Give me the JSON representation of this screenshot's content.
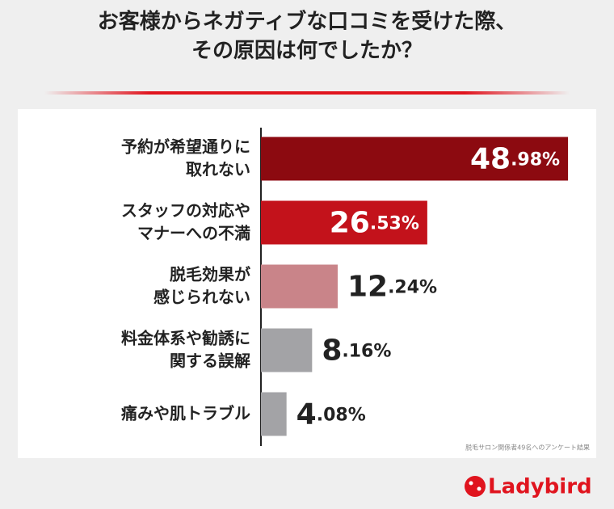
{
  "chart_data": {
    "type": "bar",
    "orientation": "horizontal",
    "title": "お客様からネガティブな口コミを受けた際、\nその原因は何でしたか？",
    "categories": [
      "予約が希望通りに\n取れない",
      "スタッフの対応や\nマナーへの不満",
      "脱毛効果が\n感じられない",
      "料金体系や勧誘に\n関する誤解",
      "痛みや肌トラブル"
    ],
    "values": [
      48.98,
      26.53,
      12.24,
      8.16,
      4.08
    ],
    "value_labels": [
      "48.98%",
      "26.53%",
      "12.24%",
      "8.16%",
      "4.08%"
    ],
    "colors": [
      "#8c0a10",
      "#c3121b",
      "#c98489",
      "#a3a3a6",
      "#a3a3a6"
    ],
    "xlim": [
      0,
      50
    ],
    "note": "脱毛サロン関係者49名へのアンケート結果",
    "brand": "Ladybird"
  }
}
